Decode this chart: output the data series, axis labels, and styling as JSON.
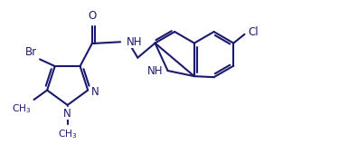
{
  "bg_color": "#ffffff",
  "bond_color": "#1a1a6e",
  "text_color": "#1a1a6e",
  "lw": 1.5,
  "fs": 8.5,
  "figsize": [
    3.86,
    1.81
  ],
  "dpi": 100,
  "xlim": [
    0,
    10.5
  ],
  "ylim": [
    0,
    5.2
  ]
}
